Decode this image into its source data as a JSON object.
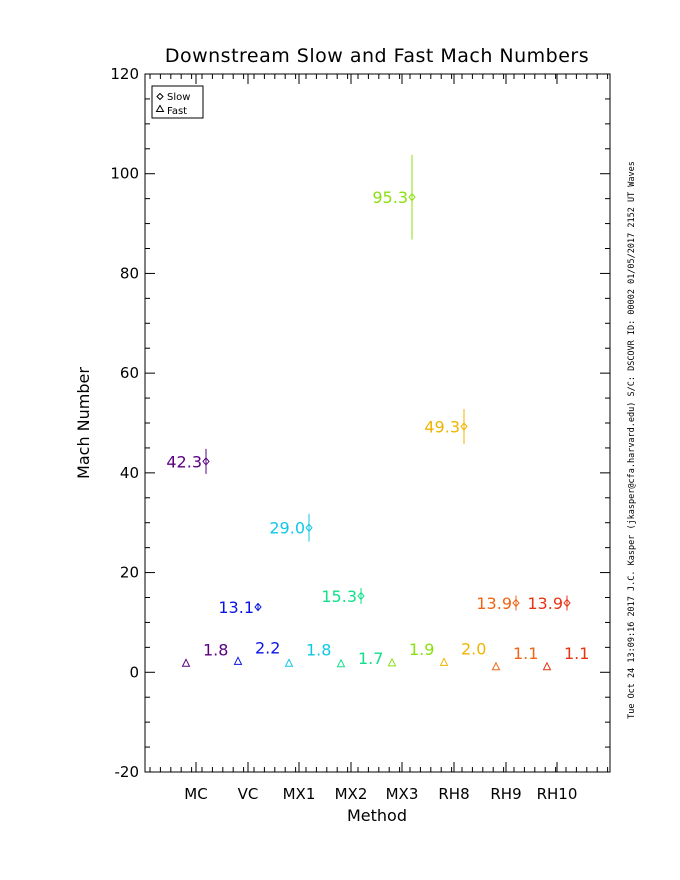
{
  "chart_data": {
    "type": "scatter",
    "title": "Downstream Slow and Fast Mach Numbers",
    "xlabel": "Method",
    "ylabel": "Mach Number",
    "categories": [
      "MC",
      "VC",
      "MX1",
      "MX2",
      "MX3",
      "RH8",
      "RH9",
      "RH10"
    ],
    "ylim": [
      -20,
      120
    ],
    "y_ticks": [
      -20,
      0,
      20,
      40,
      60,
      80,
      100,
      120
    ],
    "legend": {
      "position": "top-left",
      "entries": [
        "Slow",
        "Fast"
      ]
    },
    "side_note": "Tue Oct 24 13:09:16 2017   J.C. Kasper (jkasper@cfa.harvard.edu)   S/C: DSCOVR ID: 00002 01/05/2017   2152 UT Waves",
    "series": [
      {
        "name": "Slow",
        "marker": "diamond",
        "values": [
          42.3,
          13.1,
          29.0,
          15.3,
          95.3,
          49.3,
          13.9,
          13.9
        ],
        "errors": [
          2.5,
          0.8,
          2.8,
          1.6,
          8.5,
          3.5,
          1.5,
          1.5
        ],
        "labels": [
          "42.3",
          "13.1",
          "29.0",
          "15.3",
          "95.3",
          "49.3",
          "13.9",
          "13.9"
        ]
      },
      {
        "name": "Fast",
        "marker": "triangle",
        "values": [
          1.8,
          2.2,
          1.8,
          1.7,
          1.9,
          2.0,
          1.1,
          1.1
        ],
        "labels": [
          "1.8",
          "2.2",
          "1.8",
          "1.7",
          "1.9",
          "2.0",
          "1.1",
          "1.1"
        ]
      }
    ],
    "colors": [
      "#5a0080",
      "#0a14e6",
      "#10c8e6",
      "#10e08a",
      "#8ae010",
      "#f0b400",
      "#f06414",
      "#e83214"
    ]
  }
}
